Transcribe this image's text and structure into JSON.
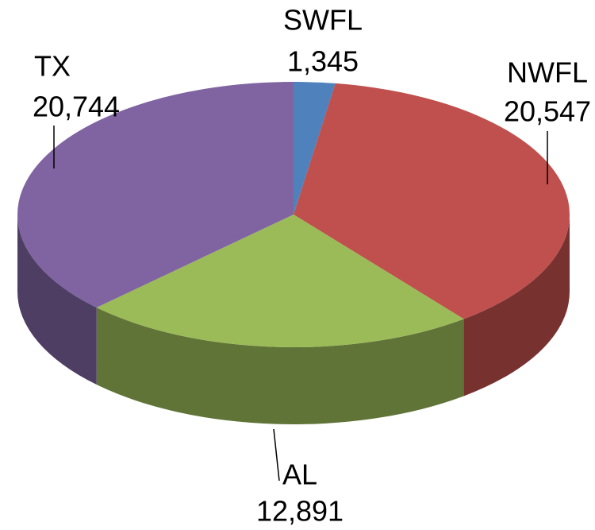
{
  "chart_data": {
    "type": "pie",
    "categories": [
      "SWFL",
      "NWFL",
      "AL",
      "TX"
    ],
    "values": [
      1345,
      20547,
      12891,
      20744
    ],
    "value_labels": [
      "1,345",
      "20,547",
      "12,891",
      "20,744"
    ],
    "colors": [
      "#4f81bd",
      "#c0504d",
      "#9bbb59",
      "#8064a2"
    ]
  }
}
